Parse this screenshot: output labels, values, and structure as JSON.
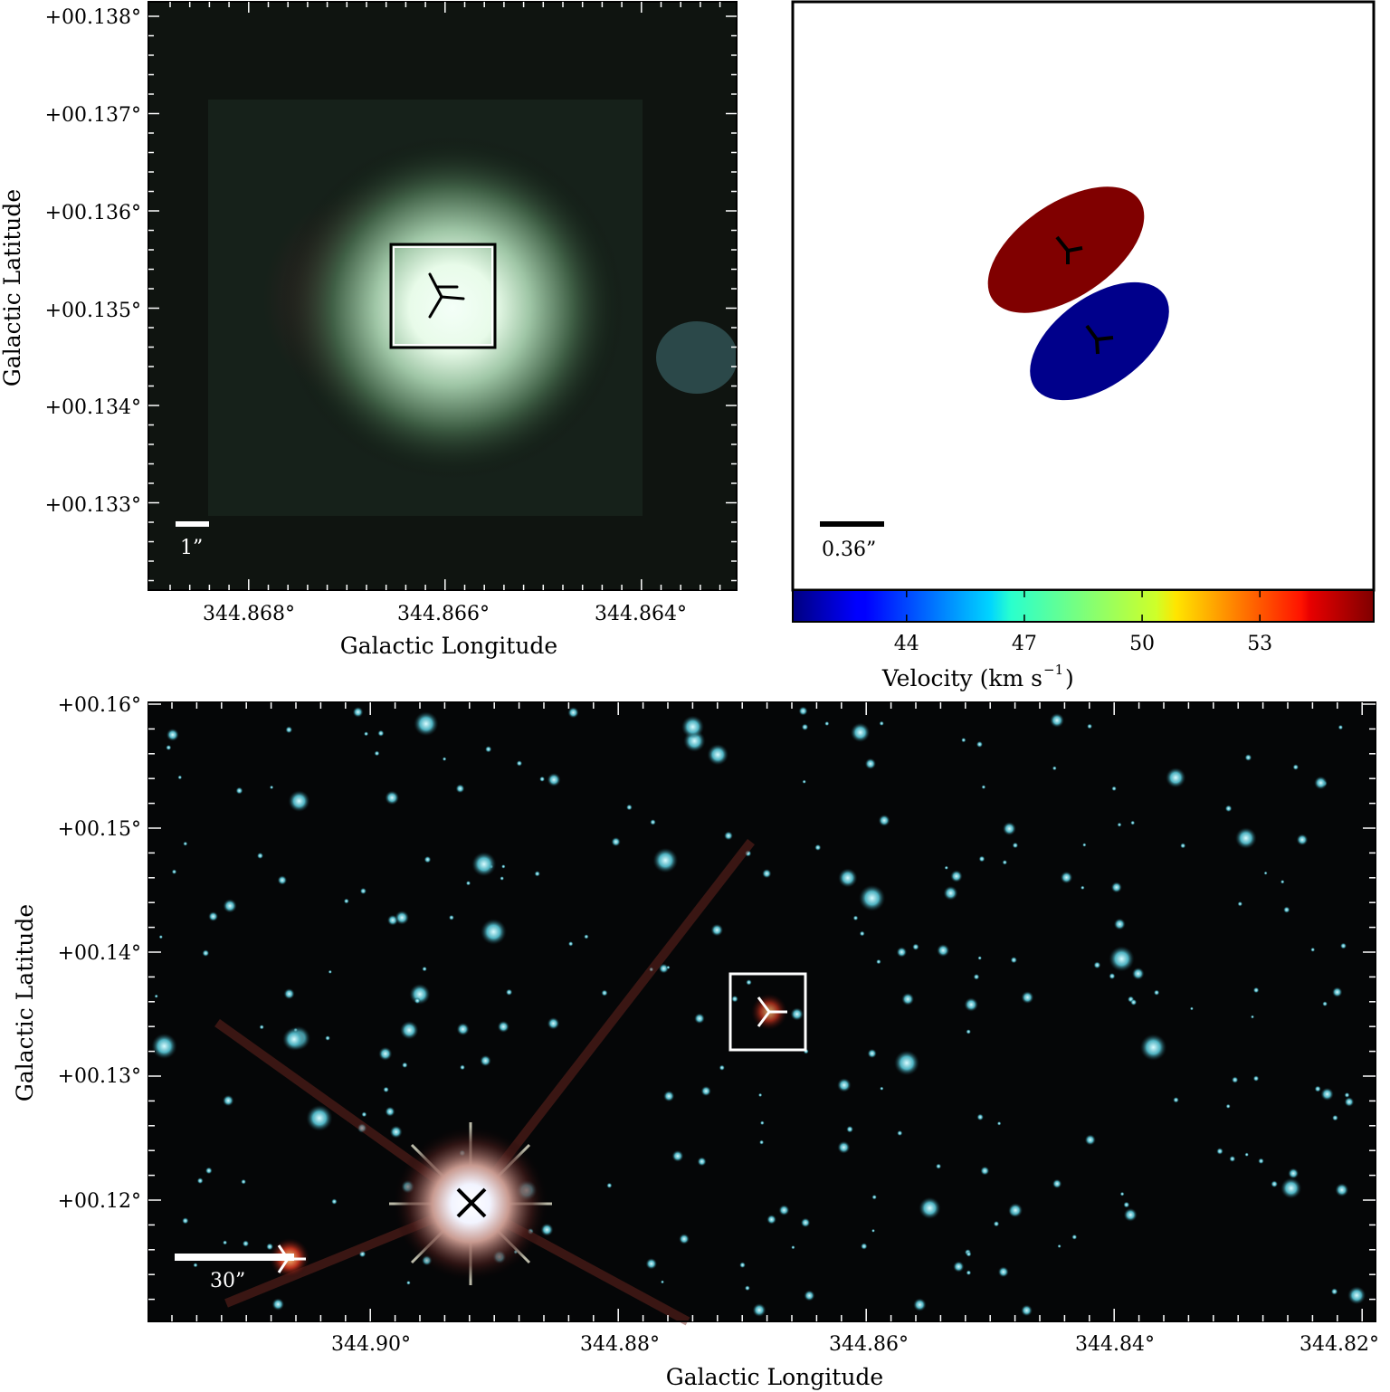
{
  "chart_data": [
    {
      "type": "image",
      "panel": "top-left",
      "xlabel": "Galactic Longitude",
      "ylabel": "Galactic Latitude",
      "x_ticks": [
        "344.868°",
        "344.866°",
        "344.864°"
      ],
      "y_ticks": [
        "+00.138°",
        "+00.137°",
        "+00.136°",
        "+00.135°",
        "+00.134°",
        "+00.133°"
      ],
      "scale_bar": "1”",
      "marker": "source-position"
    },
    {
      "type": "scatter",
      "panel": "top-right",
      "description_markers": "two velocity components with tri-markers",
      "components": [
        {
          "color": "#800000",
          "marker": "tri"
        },
        {
          "color": "#00008b",
          "marker": "tri"
        }
      ],
      "scale_bar": "0.36”",
      "colorbar": {
        "label": "Velocity (km s",
        "label_exp": "−1",
        "label_close": ")",
        "ticks": [
          "44",
          "47",
          "50",
          "53"
        ],
        "tick_values": [
          44,
          47,
          50,
          53
        ],
        "vmin": 41.1,
        "vmax": 55.9,
        "colormap": "jet"
      }
    },
    {
      "type": "image",
      "panel": "bottom",
      "xlabel": "Galactic Longitude",
      "ylabel": "Galactic Latitude",
      "x_ticks": [
        "344.90°",
        "344.88°",
        "344.86°",
        "344.84°",
        "344.82°"
      ],
      "y_ticks": [
        "+00.16°",
        "+00.15°",
        "+00.14°",
        "+00.13°",
        "+00.12°"
      ],
      "scale_bar": "30”",
      "markers": [
        "source-position",
        "bright-star-cross"
      ]
    }
  ]
}
